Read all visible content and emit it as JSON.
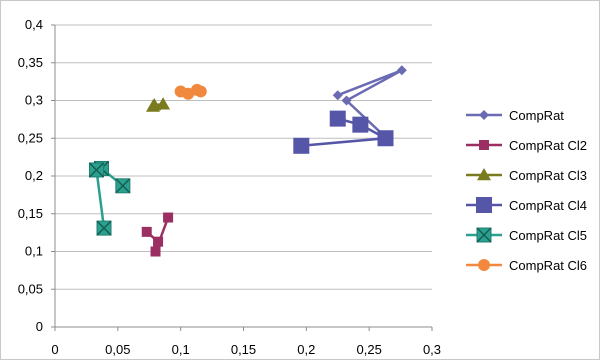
{
  "chart_data": {
    "type": "scatter",
    "title": "",
    "xlabel": "",
    "ylabel": "",
    "xlim": [
      0,
      0.3
    ],
    "ylim": [
      0,
      0.4
    ],
    "xticks": [
      "0",
      "0,05",
      "0,1",
      "0,15",
      "0,2",
      "0,25",
      "0,3"
    ],
    "yticks": [
      "0",
      "0,05",
      "0,1",
      "0,15",
      "0,2",
      "0,25",
      "0,3",
      "0,35",
      "0,4"
    ],
    "grid": "horizontal",
    "legend_position": "right",
    "series": [
      {
        "name": "CompRat",
        "color": "#6b6bb3",
        "marker": "diamond",
        "connected": true,
        "points": [
          [
            0.225,
            0.307
          ],
          [
            0.276,
            0.34
          ],
          [
            0.232,
            0.3
          ],
          [
            0.262,
            0.253
          ]
        ]
      },
      {
        "name": "CompRat Cl2",
        "color": "#9b2f63",
        "marker": "square",
        "connected": true,
        "points": [
          [
            0.073,
            0.126
          ],
          [
            0.082,
            0.113
          ],
          [
            0.08,
            0.1
          ],
          [
            0.09,
            0.145
          ]
        ]
      },
      {
        "name": "CompRat Cl3",
        "color": "#7a7a1e",
        "marker": "triangle",
        "connected": true,
        "points": [
          [
            0.078,
            0.292
          ],
          [
            0.086,
            0.295
          ],
          [
            0.079,
            0.294
          ]
        ]
      },
      {
        "name": "CompRat Cl4",
        "color": "#5656a8",
        "marker": "square-large",
        "connected": true,
        "points": [
          [
            0.196,
            0.24
          ],
          [
            0.263,
            0.25
          ],
          [
            0.243,
            0.268
          ],
          [
            0.225,
            0.276
          ]
        ]
      },
      {
        "name": "CompRat Cl5",
        "color": "#2ca08f",
        "marker": "x-square",
        "connected": true,
        "points": [
          [
            0.054,
            0.187
          ],
          [
            0.037,
            0.21
          ],
          [
            0.033,
            0.208
          ],
          [
            0.039,
            0.131
          ]
        ]
      },
      {
        "name": "CompRat Cl6",
        "color": "#f0883e",
        "marker": "circle",
        "connected": true,
        "points": [
          [
            0.1,
            0.312
          ],
          [
            0.106,
            0.309
          ],
          [
            0.113,
            0.314
          ],
          [
            0.116,
            0.312
          ]
        ]
      }
    ]
  }
}
